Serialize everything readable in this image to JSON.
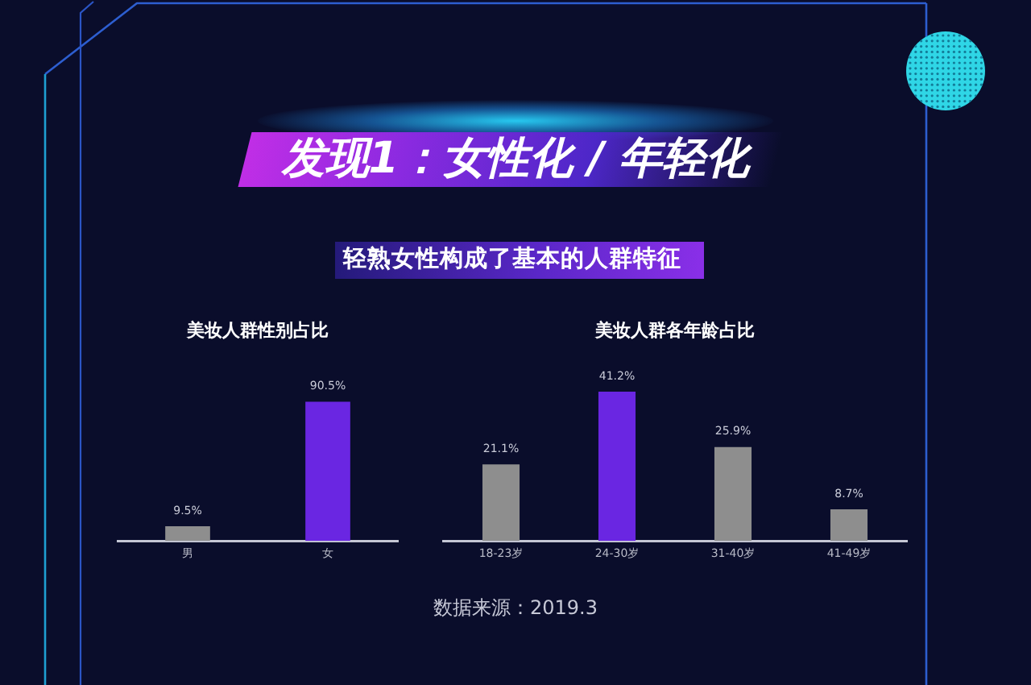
{
  "chart_data": [
    {
      "type": "other",
      "title": "发现1：女性化 / 年轻化",
      "subtitle": "轻熟女性构成了基本的人群特征",
      "annotations": [
        "数据来源：2019.3"
      ]
    },
    {
      "type": "bar",
      "title": "美妆人群性别占比",
      "categories": [
        "男",
        "女"
      ],
      "values": [
        9.5,
        90.5
      ],
      "colors": [
        "#8e8e8e",
        "#6a26e2"
      ],
      "value_labels": [
        "9.5%",
        "90.5%"
      ],
      "tick_labels": "x"
    },
    {
      "type": "bar",
      "title": "美妆人群各年龄占比",
      "categories": [
        "18-23岁",
        "24-30岁",
        "31-40岁",
        "41-49岁"
      ],
      "values": [
        21.1,
        41.2,
        25.9,
        8.7
      ],
      "colors": [
        "#8e8e8e",
        "#6a26e2",
        "#8e8e8e",
        "#8e8e8e"
      ],
      "value_labels": [
        "21.1%",
        "41.2%",
        "25.9%",
        "8.7%"
      ],
      "tick_labels": "x"
    }
  ]
}
